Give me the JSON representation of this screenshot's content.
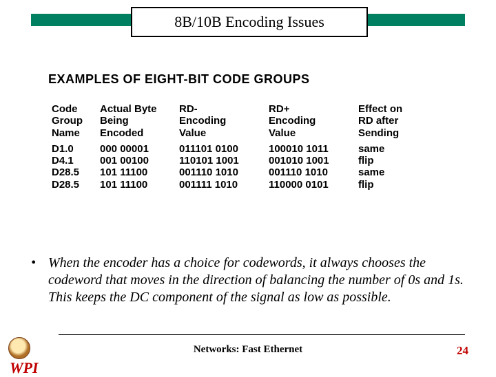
{
  "title": "8B/10B Encoding Issues",
  "section_heading": "EXAMPLES OF EIGHT-BIT CODE GROUPS",
  "table": {
    "headers": {
      "c1": [
        "Code",
        "Group",
        "Name"
      ],
      "c2": [
        "Actual Byte",
        "Being",
        "Encoded"
      ],
      "c3": [
        "RD-",
        "Encoding",
        "Value"
      ],
      "c4": [
        "RD+",
        "Encoding",
        "Value"
      ],
      "c5": [
        "Effect on",
        "RD after",
        "Sending"
      ]
    },
    "rows": [
      {
        "c1": "D1.0",
        "c2": "000 00001",
        "c3": "011101 0100",
        "c4": "100010 1011",
        "c5": "same"
      },
      {
        "c1": "D4.1",
        "c2": "001 00100",
        "c3": "110101 1001",
        "c4": "001010 1001",
        "c5": "flip"
      },
      {
        "c1": "D28.5",
        "c2": "101 11100",
        "c3": "001110 1010",
        "c4": "001110 1010",
        "c5": "same"
      },
      {
        "c1": "D28.5",
        "c2": "101 11100",
        "c3": "001111 1010",
        "c4": "110000 0101",
        "c5": "flip"
      }
    ]
  },
  "bullet": "When the encoder has a choice for codewords, it always chooses the codeword that moves in the direction of balancing the number of  0s and 1s.  This keeps the DC component of the signal as low as possible.",
  "footer": {
    "text": "Networks: Fast Ethernet",
    "page": "24",
    "logo_text": "WPI"
  },
  "colors": {
    "accent_green": "#008060",
    "accent_red": "#c00000",
    "bg": "#ffffff",
    "fg": "#000000"
  }
}
